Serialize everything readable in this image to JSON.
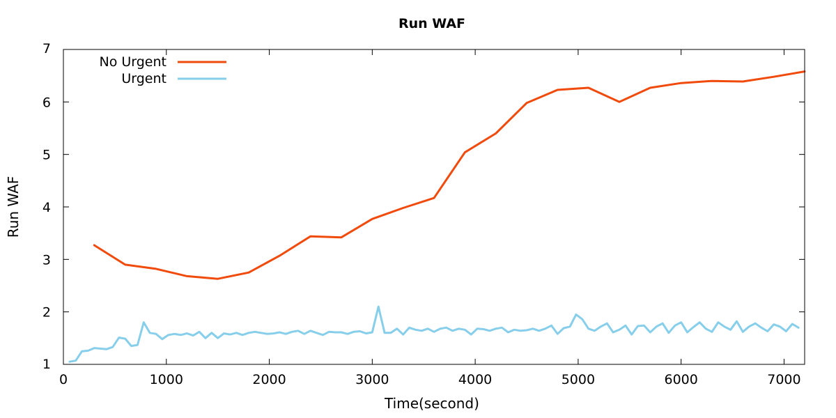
{
  "chart_data": {
    "type": "line",
    "title": "Run WAF",
    "xlabel": "Time(second)",
    "ylabel": "Run WAF",
    "xlim": [
      0,
      7200
    ],
    "ylim": [
      1,
      7
    ],
    "xticks": [
      0,
      1000,
      2000,
      3000,
      4000,
      5000,
      6000,
      7000
    ],
    "yticks": [
      1,
      2,
      3,
      4,
      5,
      6,
      7
    ],
    "grid": false,
    "legend_position": "top-left",
    "series": [
      {
        "name": "No Urgent",
        "color": "#f04a0c",
        "x": [
          300,
          600,
          900,
          1200,
          1500,
          1800,
          2100,
          2400,
          2700,
          3000,
          3300,
          3600,
          3900,
          4200,
          4500,
          4800,
          5100,
          5400,
          5700,
          6000,
          6300,
          6600,
          6900,
          7200
        ],
        "y": [
          3.27,
          2.9,
          2.82,
          2.68,
          2.63,
          2.75,
          3.07,
          3.44,
          3.42,
          3.77,
          3.98,
          4.17,
          5.04,
          5.4,
          5.98,
          6.23,
          6.27,
          6.0,
          6.27,
          6.36,
          6.4,
          6.39,
          6.48,
          6.58
        ]
      },
      {
        "name": "Urgent",
        "color": "#87ceeb",
        "x": [
          60,
          120,
          180,
          240,
          300,
          360,
          420,
          480,
          540,
          600,
          660,
          720,
          780,
          840,
          900,
          960,
          1020,
          1080,
          1140,
          1200,
          1260,
          1320,
          1380,
          1440,
          1500,
          1560,
          1620,
          1680,
          1740,
          1800,
          1860,
          1920,
          1980,
          2040,
          2100,
          2160,
          2220,
          2280,
          2340,
          2400,
          2460,
          2520,
          2580,
          2640,
          2700,
          2760,
          2820,
          2880,
          2940,
          3000,
          3060,
          3120,
          3180,
          3240,
          3300,
          3360,
          3420,
          3480,
          3540,
          3600,
          3660,
          3720,
          3780,
          3840,
          3900,
          3960,
          4020,
          4080,
          4140,
          4200,
          4260,
          4320,
          4380,
          4440,
          4500,
          4560,
          4620,
          4680,
          4740,
          4800,
          4860,
          4920,
          4980,
          5040,
          5100,
          5160,
          5220,
          5280,
          5340,
          5400,
          5460,
          5520,
          5580,
          5640,
          5700,
          5760,
          5820,
          5880,
          5940,
          6000,
          6060,
          6120,
          6180,
          6240,
          6300,
          6360,
          6420,
          6480,
          6540,
          6600,
          6660,
          6720,
          6780,
          6840,
          6900,
          6960,
          7020,
          7080,
          7140
        ],
        "y": [
          1.05,
          1.07,
          1.25,
          1.26,
          1.31,
          1.3,
          1.29,
          1.33,
          1.51,
          1.49,
          1.35,
          1.37,
          1.8,
          1.6,
          1.58,
          1.48,
          1.56,
          1.58,
          1.56,
          1.59,
          1.55,
          1.62,
          1.5,
          1.6,
          1.5,
          1.59,
          1.57,
          1.6,
          1.56,
          1.6,
          1.62,
          1.6,
          1.58,
          1.59,
          1.61,
          1.58,
          1.62,
          1.64,
          1.58,
          1.64,
          1.6,
          1.56,
          1.62,
          1.61,
          1.61,
          1.58,
          1.62,
          1.63,
          1.59,
          1.61,
          2.1,
          1.6,
          1.6,
          1.68,
          1.57,
          1.7,
          1.66,
          1.64,
          1.68,
          1.62,
          1.68,
          1.7,
          1.64,
          1.68,
          1.66,
          1.57,
          1.68,
          1.67,
          1.64,
          1.68,
          1.7,
          1.61,
          1.66,
          1.64,
          1.65,
          1.68,
          1.64,
          1.68,
          1.74,
          1.58,
          1.69,
          1.72,
          1.95,
          1.86,
          1.68,
          1.64,
          1.72,
          1.78,
          1.61,
          1.66,
          1.74,
          1.57,
          1.73,
          1.74,
          1.61,
          1.72,
          1.78,
          1.6,
          1.74,
          1.8,
          1.61,
          1.71,
          1.8,
          1.68,
          1.62,
          1.8,
          1.72,
          1.66,
          1.82,
          1.62,
          1.72,
          1.78,
          1.7,
          1.63,
          1.76,
          1.72,
          1.63,
          1.77,
          1.7
        ]
      }
    ]
  }
}
